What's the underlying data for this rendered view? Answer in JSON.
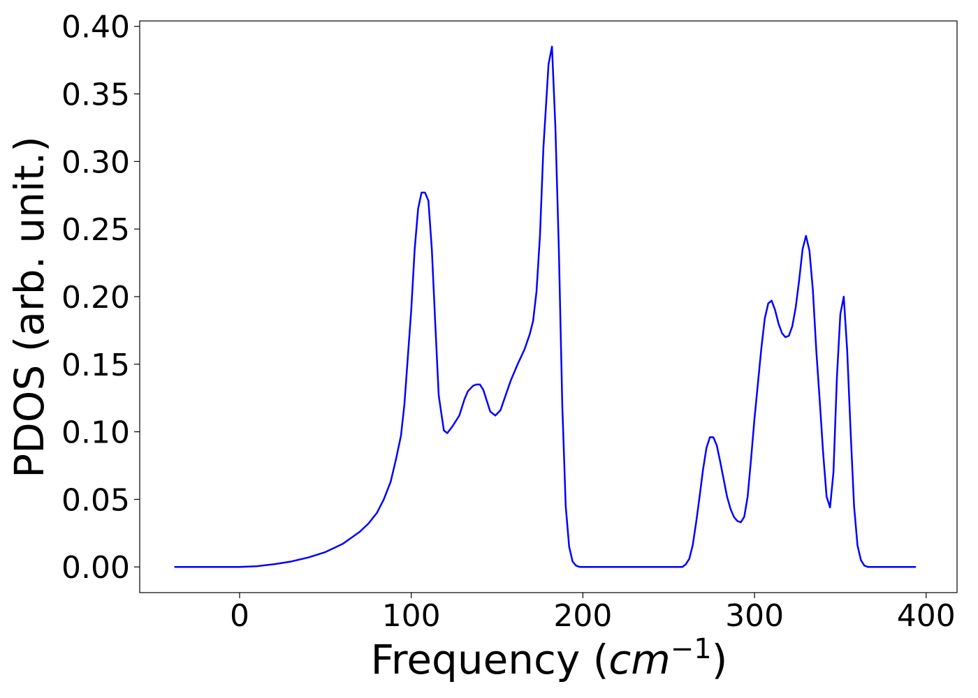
{
  "chart_data": {
    "type": "line",
    "xlabel": [
      "Frequency (",
      "cm",
      "−1",
      ")"
    ],
    "ylabel": "PDOS (arb. unit.)",
    "x": [
      -38,
      0,
      10,
      20,
      30,
      40,
      50,
      60,
      70,
      75,
      80,
      84,
      88,
      91,
      94,
      96,
      98,
      100,
      102,
      104,
      106,
      108,
      110,
      112,
      114,
      116,
      119,
      121,
      124,
      128,
      131,
      133,
      136,
      138,
      140,
      142,
      144,
      146,
      149,
      152,
      155,
      158,
      162,
      166,
      169,
      171,
      173,
      175,
      177,
      180,
      182,
      184,
      186,
      188,
      190,
      192,
      194,
      196,
      198,
      256,
      258,
      260,
      262,
      264,
      266,
      268,
      270,
      272,
      274,
      276,
      278,
      280,
      282,
      284,
      286,
      288,
      290,
      292,
      294,
      296,
      298,
      300,
      302,
      304,
      306,
      308,
      310,
      312,
      314,
      316,
      318,
      320,
      322,
      324,
      326,
      328,
      330,
      332,
      334,
      336,
      338,
      340,
      342,
      344,
      346,
      348,
      350,
      352,
      354,
      356,
      358,
      360,
      362,
      364,
      366,
      394
    ],
    "series": [
      {
        "color": "#0000ff",
        "values": [
          0,
          0,
          0.0005,
          0.002,
          0.004,
          0.007,
          0.011,
          0.017,
          0.026,
          0.032,
          0.04,
          0.05,
          0.063,
          0.079,
          0.097,
          0.12,
          0.155,
          0.19,
          0.235,
          0.265,
          0.277,
          0.277,
          0.271,
          0.235,
          0.18,
          0.127,
          0.101,
          0.099,
          0.104,
          0.112,
          0.124,
          0.13,
          0.134,
          0.135,
          0.135,
          0.131,
          0.123,
          0.115,
          0.112,
          0.116,
          0.127,
          0.138,
          0.15,
          0.161,
          0.172,
          0.182,
          0.204,
          0.245,
          0.31,
          0.372,
          0.385,
          0.325,
          0.235,
          0.12,
          0.045,
          0.015,
          0.004,
          0.001,
          0,
          0,
          0,
          0.002,
          0.006,
          0.016,
          0.033,
          0.052,
          0.072,
          0.088,
          0.096,
          0.096,
          0.09,
          0.078,
          0.065,
          0.052,
          0.043,
          0.037,
          0.034,
          0.033,
          0.037,
          0.052,
          0.08,
          0.11,
          0.136,
          0.162,
          0.184,
          0.195,
          0.197,
          0.19,
          0.18,
          0.173,
          0.17,
          0.171,
          0.178,
          0.192,
          0.212,
          0.235,
          0.245,
          0.234,
          0.205,
          0.16,
          0.123,
          0.084,
          0.052,
          0.044,
          0.07,
          0.14,
          0.187,
          0.2,
          0.16,
          0.1,
          0.045,
          0.016,
          0.005,
          0.001,
          0,
          0
        ]
      }
    ],
    "xlim": [
      -58.2,
      418
    ],
    "ylim": [
      -0.019,
      0.404
    ],
    "xticks": [
      0,
      100,
      200,
      300,
      400
    ],
    "yticks": [
      {
        "value": 0,
        "label": "0.00"
      },
      {
        "value": 0.05,
        "label": "0.05"
      },
      {
        "value": 0.1,
        "label": "0.10"
      },
      {
        "value": 0.15,
        "label": "0.15"
      },
      {
        "value": 0.2,
        "label": "0.20"
      },
      {
        "value": 0.25,
        "label": "0.25"
      },
      {
        "value": 0.3,
        "label": "0.30"
      },
      {
        "value": 0.35,
        "label": "0.35"
      },
      {
        "value": 0.4,
        "label": "0.40"
      }
    ]
  }
}
